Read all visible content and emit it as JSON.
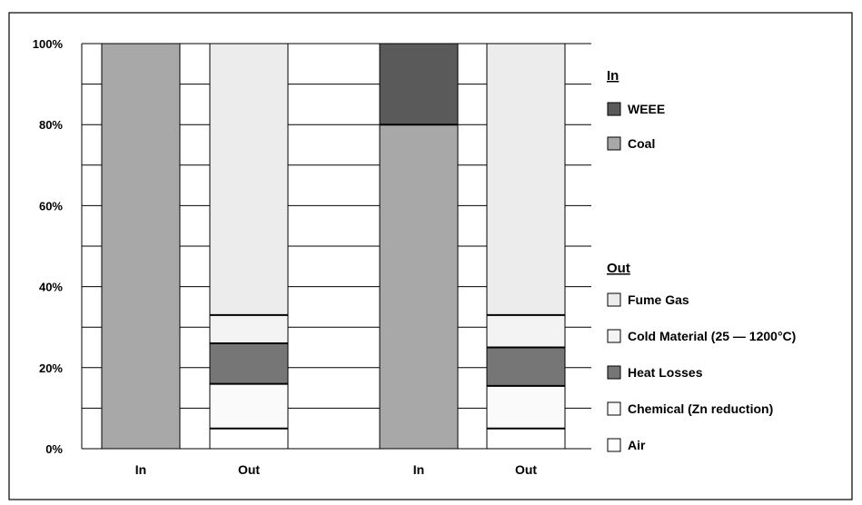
{
  "chart_data": {
    "type": "bar",
    "stacked": true,
    "percent": true,
    "categories": [
      "In",
      "Out",
      "In",
      "Out"
    ],
    "y_ticks": [
      "0%",
      "20%",
      "40%",
      "60%",
      "80%",
      "100%"
    ],
    "ylim": [
      0,
      100
    ],
    "grid": true,
    "legend_position": "right",
    "legend_groups": [
      {
        "title": "In",
        "items": [
          {
            "label": "WEEE",
            "color": "#5a5a5a"
          },
          {
            "label": "Coal",
            "color": "#a8a8a8"
          }
        ]
      },
      {
        "title": "Out",
        "items": [
          {
            "label": "Fume Gas",
            "color": "#ececec"
          },
          {
            "label": "Cold Material (25 — 1200°C)",
            "color": "#f3f3f3"
          },
          {
            "label": "Heat Losses",
            "color": "#767676"
          },
          {
            "label": "Chemical (Zn reduction)",
            "color": "#fafafa"
          },
          {
            "label": "Air",
            "color": "#ffffff"
          }
        ]
      }
    ],
    "bars": [
      {
        "category": "In",
        "segments": [
          {
            "series": "Coal",
            "value": 100
          }
        ]
      },
      {
        "category": "Out",
        "segments": [
          {
            "series": "Air",
            "value": 5
          },
          {
            "series": "Chemical (Zn reduction)",
            "value": 11
          },
          {
            "series": "Heat Losses",
            "value": 10
          },
          {
            "series": "Cold Material (25 — 1200°C)",
            "value": 7
          },
          {
            "series": "Fume Gas",
            "value": 67
          }
        ]
      },
      {
        "category": "In",
        "segments": [
          {
            "series": "Coal",
            "value": 80
          },
          {
            "series": "WEEE",
            "value": 20
          }
        ]
      },
      {
        "category": "Out",
        "segments": [
          {
            "series": "Air",
            "value": 5
          },
          {
            "series": "Chemical (Zn reduction)",
            "value": 10.5
          },
          {
            "series": "Heat Losses",
            "value": 9.5
          },
          {
            "series": "Cold Material (25 — 1200°C)",
            "value": 8
          },
          {
            "series": "Fume Gas",
            "value": 67
          }
        ]
      }
    ]
  }
}
